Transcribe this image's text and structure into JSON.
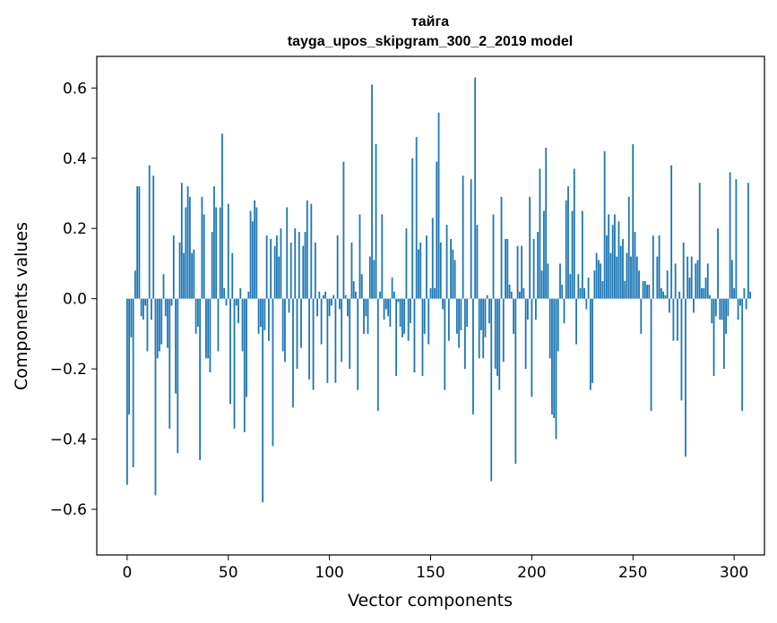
{
  "chart_data": {
    "type": "bar",
    "title": "тайга",
    "subtitle": "tayga_upos_skipgram_300_2_2019 model",
    "xlabel": "Vector components",
    "ylabel": "Components values",
    "xlim": [
      -15,
      315
    ],
    "ylim": [
      -0.73,
      0.69
    ],
    "xticks": [
      0,
      50,
      100,
      150,
      200,
      250,
      300
    ],
    "xtick_labels": [
      "0",
      "50",
      "100",
      "150",
      "200",
      "250",
      "300"
    ],
    "yticks": [
      -0.6,
      -0.4,
      -0.2,
      0.0,
      0.2,
      0.4,
      0.6
    ],
    "ytick_labels": [
      "−0.6",
      "−0.4",
      "−0.2",
      "0.0",
      "0.2",
      "0.4",
      "0.6"
    ],
    "bar_color": "#1f77b4",
    "grid": false,
    "series": [
      {
        "name": "components",
        "x_start": 0,
        "values": [
          -0.53,
          -0.33,
          -0.11,
          -0.48,
          0.08,
          0.32,
          0.32,
          -0.05,
          -0.06,
          -0.02,
          -0.15,
          0.38,
          -0.06,
          0.35,
          -0.56,
          -0.17,
          -0.15,
          -0.13,
          0.07,
          -0.05,
          -0.14,
          -0.37,
          -0.02,
          0.18,
          -0.27,
          -0.44,
          0.16,
          0.33,
          0.13,
          0.26,
          0.32,
          0.29,
          0.13,
          0.14,
          -0.1,
          -0.08,
          -0.46,
          0.29,
          0.24,
          -0.17,
          -0.17,
          -0.21,
          0.19,
          0.32,
          0.26,
          -0.15,
          0.26,
          0.47,
          0.03,
          -0.02,
          0.27,
          -0.3,
          0.13,
          -0.37,
          -0.02,
          -0.07,
          0.03,
          -0.15,
          -0.38,
          -0.28,
          0.02,
          0.25,
          0.22,
          0.28,
          0.26,
          -0.1,
          -0.08,
          -0.58,
          -0.09,
          0.18,
          -0.12,
          0.17,
          -0.42,
          0.15,
          0.18,
          0.12,
          0.2,
          -0.15,
          -0.18,
          0.26,
          -0.04,
          0.16,
          -0.31,
          0.2,
          -0.2,
          0.19,
          -0.14,
          0.15,
          0.19,
          0.28,
          -0.23,
          0.27,
          -0.26,
          0.16,
          -0.05,
          0.02,
          -0.13,
          0.01,
          0.02,
          -0.24,
          -0.05,
          -0.02,
          0.01,
          -0.24,
          0.18,
          -0.03,
          -0.18,
          0.39,
          0.01,
          -0.05,
          -0.2,
          0.16,
          0.05,
          0.02,
          -0.26,
          0.24,
          0.07,
          -0.1,
          -0.05,
          -0.1,
          0.12,
          0.61,
          0.11,
          0.44,
          -0.32,
          0.02,
          0.24,
          -0.06,
          -0.03,
          -0.05,
          -0.08,
          0.06,
          0.02,
          -0.22,
          -0.01,
          -0.08,
          -0.11,
          -0.1,
          0.2,
          -0.12,
          -0.07,
          0.4,
          -0.21,
          0.46,
          0.14,
          0.16,
          -0.22,
          -0.1,
          0.18,
          -0.13,
          0.03,
          0.23,
          0.03,
          0.39,
          0.53,
          0.16,
          -0.03,
          -0.26,
          0.21,
          -0.12,
          0.17,
          0.14,
          0.11,
          -0.1,
          -0.14,
          -0.09,
          0.35,
          -0.2,
          -0.08,
          0.0,
          0.34,
          -0.33,
          0.63,
          0.21,
          -0.17,
          -0.09,
          -0.17,
          -0.11,
          0.01,
          -0.07,
          -0.52,
          0.24,
          -0.2,
          -0.22,
          -0.26,
          0.29,
          -0.18,
          0.17,
          0.17,
          0.04,
          0.02,
          -0.1,
          -0.47,
          0.15,
          0.02,
          0.15,
          0.03,
          -0.2,
          -0.06,
          0.29,
          -0.28,
          0.17,
          -0.06,
          0.19,
          0.37,
          0.08,
          0.25,
          0.43,
          0.1,
          -0.17,
          -0.33,
          -0.34,
          -0.4,
          -0.15,
          0.1,
          0.04,
          -0.07,
          0.28,
          0.32,
          0.07,
          0.25,
          0.37,
          -0.13,
          0.07,
          0.03,
          0.25,
          0.03,
          -0.03,
          0.06,
          -0.26,
          -0.24,
          0.08,
          0.13,
          0.11,
          0.1,
          0.05,
          0.42,
          0.18,
          0.24,
          0.13,
          0.21,
          0.24,
          0.12,
          0.22,
          0.15,
          0.17,
          0.05,
          0.13,
          0.29,
          0.12,
          0.44,
          0.19,
          0.12,
          0.08,
          -0.1,
          0.05,
          0.05,
          0.04,
          0.04,
          -0.32,
          0.18,
          0.0,
          0.12,
          0.18,
          0.03,
          0.02,
          0.01,
          0.08,
          -0.04,
          0.38,
          -0.12,
          0.1,
          -0.12,
          0.02,
          -0.29,
          0.16,
          -0.45,
          0.12,
          0.06,
          0.12,
          -0.04,
          0.1,
          0.11,
          0.33,
          0.03,
          0.03,
          0.06,
          0.1,
          0.01,
          -0.07,
          -0.22,
          -0.05,
          0.2,
          -0.06,
          -0.06,
          -0.2,
          -0.1,
          -0.05,
          0.36,
          0.11,
          0.03,
          0.34,
          -0.06,
          -0.02,
          -0.32,
          0.03,
          -0.03,
          0.33,
          0.02
        ]
      }
    ]
  }
}
